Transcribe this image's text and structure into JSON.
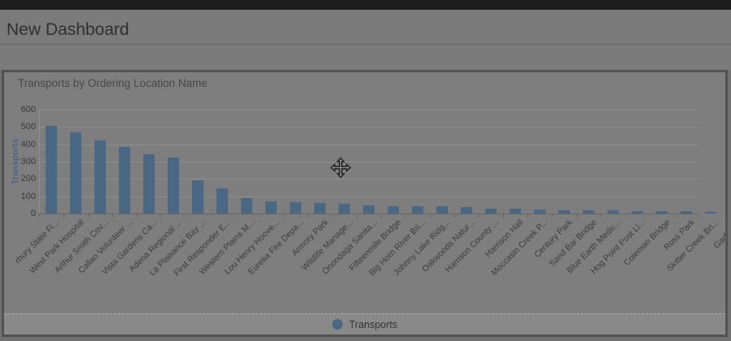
{
  "header": {
    "title": "New Dashboard"
  },
  "panel": {
    "title": "Transports by Ordering Location Name",
    "legend": [
      {
        "label": "Transports",
        "marker_color": "#4a6884"
      }
    ]
  },
  "icons": {
    "cursor": "move-cursor"
  },
  "colors": {
    "bar": "#4a6884",
    "page_background": "#717171",
    "panel_background": "#7e7e7e",
    "panel_border": "#525252",
    "topbar": "#1c1c1c"
  },
  "chart_data": {
    "type": "bar",
    "title": "Transports by Ordering Location Name",
    "xlabel": "",
    "ylabel": "Transports",
    "ylim": [
      0,
      600
    ],
    "yticks": [
      0,
      100,
      200,
      300,
      400,
      500,
      600
    ],
    "grid": true,
    "legend_position": "bottom",
    "bar_color": "#4a6884",
    "categories": [
      "rbury State Fi...",
      "West Park Hospital",
      "Arthur Smith Cov...",
      "Callao Volunteer ...",
      "Vista Gardens Ca...",
      "Adena Regional ...",
      "La Plaisance Bay ...",
      "First Responder E...",
      "Western Plains M...",
      "Lou Henry Hoove...",
      "Eureka Fire Depa...",
      "Armory Park",
      "Wildlife Manage...",
      "Onondaga Sanita...",
      "Fifteenmile Bridge",
      "Big Horn River Bri...",
      "Johnny Lake Ridg...",
      "Oakwoods Natur...",
      "Harrison County ...",
      "Harrison Hall",
      "Moccasin Creek P...",
      "Century Park",
      "Sand Bar Bridge",
      "Blue Earth Medic...",
      "Hog Point Post Li...",
      "Coleman Bridge",
      "Ross Park",
      "Skitter Creek Bri...",
      "Garfield..."
    ],
    "values": [
      505,
      470,
      420,
      385,
      340,
      325,
      190,
      145,
      90,
      72,
      65,
      60,
      55,
      48,
      44,
      42,
      41,
      36,
      30,
      28,
      23,
      20,
      19,
      17,
      15,
      14,
      12,
      8,
      5
    ]
  }
}
